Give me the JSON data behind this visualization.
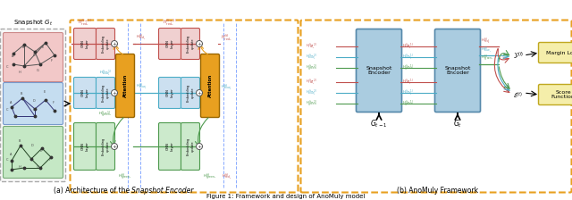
{
  "figure_caption": "Figure 1: Framework and design of AnoMuly model",
  "caption_a": "(a) Architecture of the ",
  "caption_a_italic": "Snapshot Encoder",
  "caption_b": "(b) AnoMuly Framework",
  "colors": {
    "red": "#c0504d",
    "blue": "#4bacc6",
    "green": "#4e9a4e",
    "orange": "#e8a020",
    "yellow_box": "#f2e6a0",
    "pink_graph": "#f2c8c8",
    "blue_graph": "#c5ddf0",
    "green_graph": "#c5e8c5",
    "pink_block": "#f0d0d0",
    "blue_block": "#cce0f0",
    "green_block": "#cceacc",
    "snapshot_encoder": "#aacce0",
    "dashed_vert": "#88aaff"
  },
  "figsize": [
    6.4,
    2.24
  ],
  "dpi": 100
}
